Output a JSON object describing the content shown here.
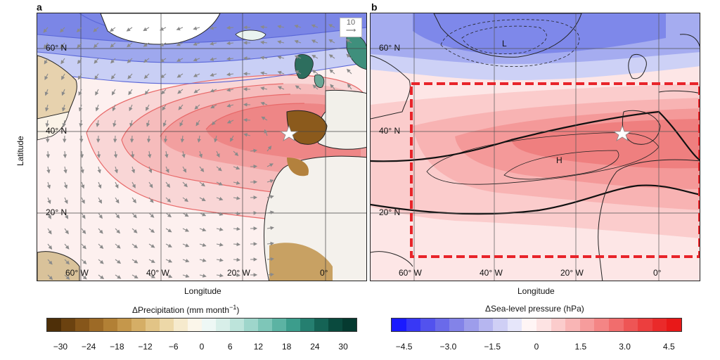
{
  "panel_a": {
    "letter": "a",
    "lat_labels": [
      "60° N",
      "40° N",
      "20° N"
    ],
    "lon_labels": [
      "60° W",
      "40° W",
      "20° W",
      "0°"
    ],
    "vector_ref": "10",
    "x_title": "Longitude",
    "y_title": "Latitude"
  },
  "panel_b": {
    "letter": "b",
    "lat_labels": [
      "60° N",
      "40° N",
      "20° N"
    ],
    "lon_labels": [
      "60° W",
      "40° W",
      "20° W",
      "0°"
    ],
    "low_label": "L",
    "high_label": "H",
    "x_title": "Longitude"
  },
  "colorbar_a": {
    "title": "ΔPrecipitation (mm month",
    "title_sup": "−1",
    "title_end": ")",
    "ticks": [
      "−30",
      "−24",
      "−18",
      "−12",
      "−6",
      "0",
      "6",
      "12",
      "18",
      "24",
      "30"
    ],
    "colors": [
      "#4e2f08",
      "#6b4210",
      "#86561a",
      "#9d6a26",
      "#b28035",
      "#c5974b",
      "#d5ae66",
      "#e2c486",
      "#edd8a8",
      "#f6eacd",
      "#fbf6ea",
      "#eef8f5",
      "#d8efe9",
      "#bde4db",
      "#9ed6cb",
      "#7ec6b8",
      "#5cb3a3",
      "#3c9d8c",
      "#257f70",
      "#156355",
      "#0a4a3e",
      "#053a30"
    ]
  },
  "colorbar_b": {
    "title": "ΔSea-level pressure (hPa)",
    "ticks": [
      "−4.5",
      "−3.0",
      "−1.5",
      "0",
      "1.5",
      "3.0",
      "4.5"
    ],
    "colors": [
      "#1a1aff",
      "#3838f5",
      "#5252ee",
      "#6a6aea",
      "#8383e8",
      "#9d9deb",
      "#b6b6f0",
      "#cfcff5",
      "#e6e6fa",
      "#fff5f5",
      "#fde3e3",
      "#fbcccc",
      "#f9b5b5",
      "#f69c9c",
      "#f48585",
      "#f16d6d",
      "#ee5555",
      "#ec3e3e",
      "#ea2a2a",
      "#e81818"
    ]
  }
}
